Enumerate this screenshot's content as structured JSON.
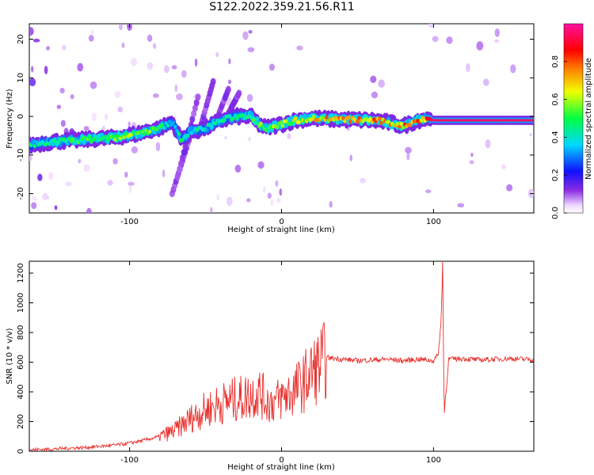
{
  "title": "S122.2022.359.21.56.R11",
  "chart_data": [
    {
      "type": "heatmap",
      "xlabel": "Height of straight line (km)",
      "ylabel": "Frequency (Hz)",
      "xlim": [
        -166,
        166
      ],
      "ylim": [
        -25,
        24
      ],
      "x_ticks": [
        -100,
        0,
        100
      ],
      "y_ticks": [
        -20,
        -10,
        0,
        10,
        20
      ],
      "colorbar": {
        "label": "Normalized spectral amplitude",
        "range": [
          0,
          1
        ],
        "ticks": [
          "0.0",
          "0.2",
          "0.4",
          "0.6",
          "0.8"
        ]
      },
      "ridge": {
        "x": [
          -166,
          -150,
          -130,
          -110,
          -95,
          -80,
          -72,
          -66,
          -60,
          -50,
          -40,
          -30,
          -20,
          -15,
          -10,
          0,
          10,
          20,
          40,
          60,
          70,
          80,
          90,
          96,
          100,
          120,
          140,
          166
        ],
        "freq": [
          -7.5,
          -6.5,
          -6,
          -5.5,
          -4.5,
          -3,
          -1.5,
          -6,
          -4,
          -3,
          -1,
          0,
          0,
          -2,
          -3,
          -2,
          -1,
          -0.5,
          -0.8,
          -1,
          -1.5,
          -2.5,
          -1,
          -0.5,
          -1,
          -1,
          -1,
          -1
        ],
        "amplitude": [
          0.45,
          0.5,
          0.55,
          0.6,
          0.6,
          0.55,
          0.4,
          0.5,
          0.45,
          0.45,
          0.5,
          0.45,
          0.55,
          0.6,
          0.6,
          0.65,
          0.65,
          0.75,
          0.8,
          0.8,
          0.8,
          0.8,
          0.85,
          0.9,
          0.95,
          0.95,
          0.95,
          0.95
        ]
      }
    },
    {
      "type": "line",
      "xlabel": "Height of straight line (km)",
      "ylabel": "SNR (10 * v/v)",
      "xlim": [
        -166,
        166
      ],
      "ylim": [
        0,
        1280
      ],
      "x_ticks": [
        -100,
        0,
        100
      ],
      "y_ticks": [
        0,
        200,
        400,
        600,
        800,
        1000,
        1200
      ],
      "color": "#e8312d",
      "x": [
        -166,
        -150,
        -130,
        -110,
        -100,
        -90,
        -80,
        -70,
        -65,
        -60,
        -55,
        -50,
        -45,
        -40,
        -35,
        -30,
        -25,
        -20,
        -15,
        -10,
        -5,
        0,
        5,
        10,
        15,
        20,
        25,
        30,
        40,
        50,
        60,
        70,
        80,
        90,
        100,
        103,
        105,
        106,
        107,
        110,
        120,
        130,
        140,
        150,
        160,
        166
      ],
      "y": [
        10,
        15,
        25,
        40,
        55,
        75,
        100,
        140,
        180,
        220,
        250,
        280,
        300,
        320,
        340,
        350,
        360,
        380,
        400,
        340,
        330,
        360,
        390,
        420,
        470,
        530,
        580,
        630,
        620,
        610,
        615,
        620,
        610,
        620,
        610,
        650,
        860,
        1280,
        250,
        620,
        625,
        615,
        620,
        625,
        620,
        620
      ]
    }
  ]
}
